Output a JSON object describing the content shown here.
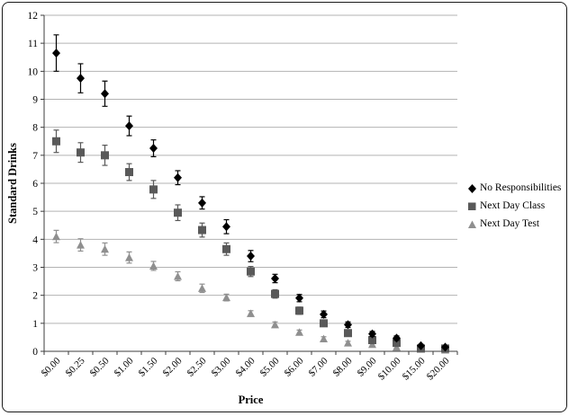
{
  "figure": {
    "background": "#ffffff",
    "border_color": "#1a1a1a"
  },
  "chart_data": {
    "type": "scatter",
    "title": "",
    "xlabel": "Price",
    "ylabel": "Standard Drinks",
    "ylim": [
      0,
      12
    ],
    "ytick_step": 1,
    "grid": "horizontal",
    "grid_color": "#b3b3b3",
    "axis_color": "#3d3d3d",
    "legend_position": "right",
    "categories": [
      "$0.00",
      "$0.25",
      "$0.50",
      "$1.00",
      "$1.50",
      "$2.00",
      "$2.50",
      "$3.00",
      "$4.00",
      "$5.00",
      "$6.00",
      "$7.00",
      "$8.00",
      "$9.00",
      "$10.00",
      "$15.00",
      "$20.00"
    ],
    "series": [
      {
        "name": "No Responsibilities",
        "marker": "diamond",
        "color": "#000000",
        "values": [
          10.65,
          9.75,
          9.2,
          8.05,
          7.25,
          6.2,
          5.3,
          4.45,
          3.4,
          2.6,
          1.9,
          1.32,
          0.95,
          0.62,
          0.47,
          0.2,
          0.15
        ],
        "errors": [
          0.65,
          0.52,
          0.45,
          0.35,
          0.3,
          0.25,
          0.22,
          0.25,
          0.2,
          0.15,
          0.13,
          0.12,
          0.1,
          0.09,
          0.08,
          0.05,
          0.04
        ]
      },
      {
        "name": "Next Day Class",
        "marker": "square",
        "color": "#595959",
        "values": [
          7.5,
          7.1,
          7.0,
          6.4,
          5.78,
          4.95,
          4.33,
          3.65,
          2.85,
          2.05,
          1.45,
          1.0,
          0.65,
          0.4,
          0.3,
          0.1,
          0.1
        ],
        "errors": [
          0.4,
          0.35,
          0.36,
          0.3,
          0.32,
          0.28,
          0.25,
          0.22,
          0.18,
          0.15,
          0.13,
          0.11,
          0.09,
          0.07,
          0.06,
          0.04,
          0.03
        ]
      },
      {
        "name": "Next Day Test",
        "marker": "triangle",
        "color": "#8f8f8f",
        "values": [
          4.1,
          3.8,
          3.65,
          3.35,
          3.05,
          2.68,
          2.25,
          1.92,
          1.35,
          0.95,
          0.68,
          0.45,
          0.3,
          0.25,
          0.15,
          0.08,
          0.05
        ],
        "errors": [
          0.22,
          0.22,
          0.22,
          0.2,
          0.16,
          0.16,
          0.15,
          0.12,
          0.1,
          0.1,
          0.08,
          0.07,
          0.06,
          0.05,
          0.04,
          0.03,
          0.03
        ]
      }
    ]
  }
}
